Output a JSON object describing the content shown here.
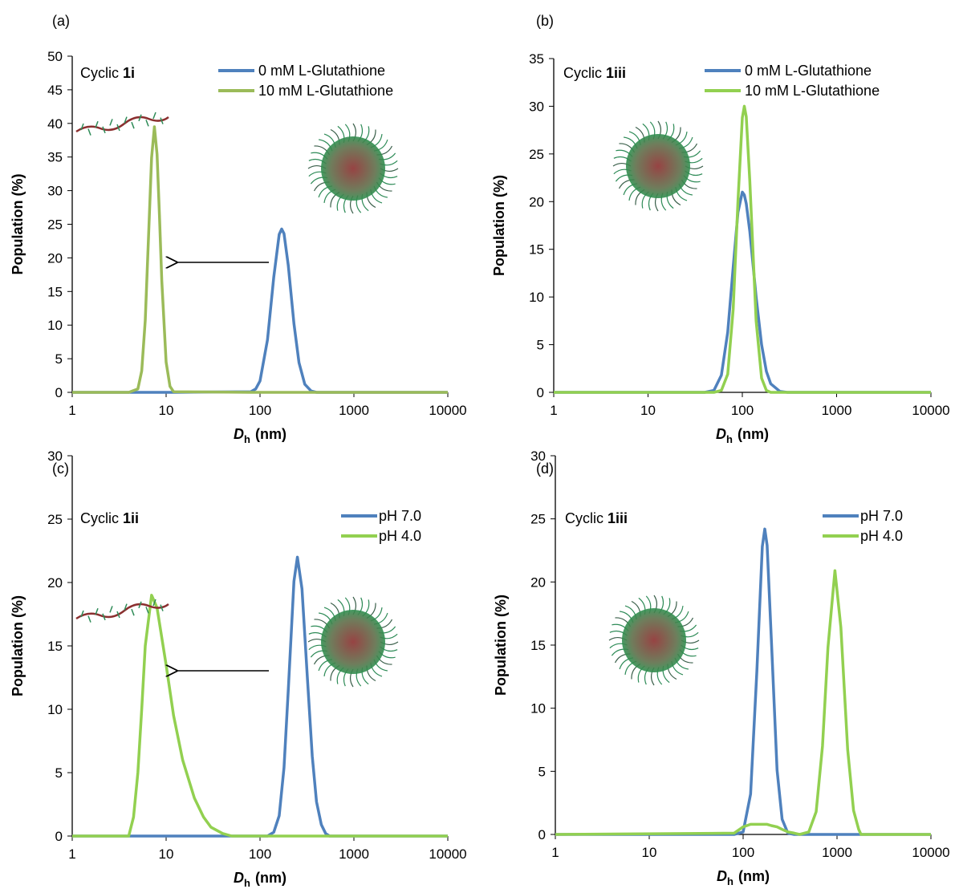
{
  "chart_data": [
    {
      "type": "line",
      "panel_label": "(a)",
      "label_prefix": "Cyclic",
      "label_bold": "1i",
      "ylabel": "Population (%)",
      "xlabel": {
        "main": "D",
        "sub": "h",
        "unit": "(nm)"
      },
      "xscale": "log",
      "xlim": [
        1,
        10000
      ],
      "xticks": [
        1,
        10,
        100,
        1000,
        10000
      ],
      "ylim": [
        0,
        50
      ],
      "yticks": [
        0,
        5,
        10,
        15,
        20,
        25,
        30,
        35,
        40,
        45,
        50
      ],
      "legend": "top-right",
      "x": [
        1,
        4,
        5,
        5.5,
        6,
        6.5,
        7,
        7.5,
        8,
        8.5,
        9,
        10,
        11,
        12,
        80,
        90,
        100,
        120,
        140,
        160,
        170,
        180,
        200,
        230,
        260,
        300,
        350,
        400,
        10000
      ],
      "series": [
        {
          "name": "0 mM L-Glutathione",
          "color": "#4f81bd",
          "values": [
            0,
            0,
            0,
            0,
            0,
            0,
            0,
            0,
            0,
            0,
            0,
            0,
            0,
            0,
            0.1,
            0.5,
            1.7,
            7.8,
            17.1,
            23.5,
            24.3,
            23.6,
            18.9,
            10.2,
            4.4,
            1.2,
            0.2,
            0,
            0
          ]
        },
        {
          "name": "10 mM L-Glutathione",
          "color": "#9bbb59",
          "values": [
            0,
            0,
            0.5,
            3.2,
            10.7,
            23.2,
            34.9,
            39.5,
            35.4,
            26.3,
            16.6,
            4.5,
            0.9,
            0.1,
            0,
            0,
            0,
            0,
            0,
            0,
            0,
            0,
            0,
            0,
            0,
            0,
            0,
            0,
            0
          ]
        }
      ]
    },
    {
      "type": "line",
      "panel_label": "(b)",
      "label_prefix": "Cyclic",
      "label_bold": "1iii",
      "ylabel": "Population (%)",
      "xlabel": {
        "main": "D",
        "sub": "h",
        "unit": "(nm)"
      },
      "xscale": "log",
      "xlim": [
        1,
        10000
      ],
      "xticks": [
        1,
        10,
        100,
        1000,
        10000
      ],
      "ylim": [
        0,
        35
      ],
      "yticks": [
        0,
        5,
        10,
        15,
        20,
        25,
        30,
        35
      ],
      "legend": "top-right",
      "x": [
        1,
        40,
        50,
        60,
        70,
        80,
        90,
        100,
        105,
        110,
        120,
        140,
        160,
        180,
        200,
        250,
        300,
        10000
      ],
      "series": [
        {
          "name": "0 mM L-Glutathione",
          "color": "#4f81bd",
          "values": [
            0,
            0,
            0.2,
            1.8,
            6.3,
            13.1,
            18.9,
            21,
            20.7,
            19.8,
            16.9,
            10,
            5,
            2.2,
            0.9,
            0.1,
            0,
            0
          ]
        },
        {
          "name": "10 mM L-Glutathione",
          "color": "#92d050",
          "values": [
            0,
            0,
            0,
            0.2,
            1.9,
            8.7,
            20.1,
            28.8,
            30,
            28.9,
            22.2,
            7.5,
            1.5,
            0.2,
            0,
            0,
            0,
            0
          ]
        }
      ]
    },
    {
      "type": "line",
      "panel_label": "(c)",
      "label_prefix": "Cyclic",
      "label_bold": "1ii",
      "ylabel": "Population (%)",
      "xlabel": {
        "main": "D",
        "sub": "h",
        "unit": "(nm)"
      },
      "xscale": "log",
      "xlim": [
        1,
        10000
      ],
      "xticks": [
        1,
        10,
        100,
        1000,
        10000
      ],
      "ylim": [
        0,
        30
      ],
      "yticks": [
        0,
        5,
        10,
        15,
        20,
        25,
        30
      ],
      "legend": "top-right",
      "x": [
        1,
        4,
        4.5,
        5,
        5.5,
        6,
        7,
        8,
        10,
        12,
        15,
        20,
        25,
        30,
        40,
        50,
        120,
        140,
        160,
        180,
        200,
        230,
        250,
        280,
        320,
        360,
        400,
        450,
        500,
        550,
        10000
      ],
      "series": [
        {
          "name": "pH 7.0",
          "color": "#4f81bd",
          "values": [
            0,
            0,
            0,
            0,
            0,
            0,
            0,
            0,
            0,
            0,
            0,
            0,
            0,
            0,
            0,
            0,
            0,
            0.3,
            1.6,
            5.4,
            11.5,
            20.1,
            22,
            19.5,
            12.4,
            6.3,
            2.7,
            0.9,
            0.2,
            0,
            0
          ]
        },
        {
          "name": "pH 4.0",
          "color": "#92d050",
          "values": [
            0,
            0,
            1.5,
            5,
            10,
            15,
            19,
            18,
            13.5,
            9.5,
            6,
            3,
            1.5,
            0.7,
            0.2,
            0,
            0,
            0,
            0,
            0,
            0,
            0,
            0,
            0,
            0,
            0,
            0,
            0,
            0,
            0,
            0
          ]
        }
      ]
    },
    {
      "type": "line",
      "panel_label": "(d)",
      "label_prefix": "Cyclic",
      "label_bold": "1iii",
      "ylabel": "Population (%)",
      "xlabel": {
        "main": "D",
        "sub": "h",
        "unit": "(nm)"
      },
      "xscale": "log",
      "xlim": [
        1,
        10000
      ],
      "xticks": [
        1,
        10,
        100,
        1000,
        10000
      ],
      "ylim": [
        0,
        30
      ],
      "yticks": [
        0,
        5,
        10,
        15,
        20,
        25,
        30
      ],
      "legend": "top-right",
      "x": [
        1,
        80,
        100,
        120,
        140,
        160,
        170,
        180,
        200,
        230,
        260,
        300,
        350,
        400,
        500,
        600,
        700,
        800,
        950,
        1100,
        1300,
        1500,
        1700,
        1800,
        10000
      ],
      "series": [
        {
          "name": "pH 7.0",
          "color": "#4f81bd",
          "values": [
            0,
            0,
            0.2,
            3.2,
            12.9,
            22.8,
            24.2,
            22.9,
            15.4,
            5.1,
            1.2,
            0.1,
            0,
            0,
            0,
            0,
            0,
            0,
            0,
            0,
            0,
            0,
            0,
            0,
            0
          ]
        },
        {
          "name": "pH 4.0",
          "color": "#92d050",
          "values": [
            0,
            0.1,
            0.6,
            0.8,
            0.8,
            0.8,
            0.8,
            0.8,
            0.7,
            0.6,
            0.4,
            0.2,
            0.1,
            0,
            0.2,
            1.8,
            7,
            14.8,
            20.9,
            16.4,
            6.7,
            1.9,
            0.4,
            0,
            0
          ]
        }
      ]
    }
  ]
}
